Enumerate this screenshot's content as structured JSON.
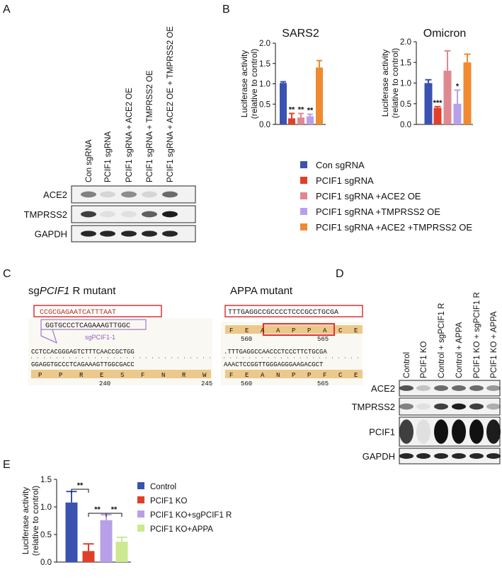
{
  "panels": [
    "A",
    "B",
    "C",
    "D",
    "E"
  ],
  "blot_a": {
    "lanes": [
      "Con sgRNA",
      "PCIF1 sgRNA",
      "PCIF1 sgRNA + ACE2 OE",
      "PCIF1 sgRNA + TMPRSS2 OE",
      "PCIF1 sgRNA + ACE2 OE + TMPRSS2 OE"
    ],
    "rows": [
      "ACE2",
      "TMPRSS2",
      "GAPDH"
    ]
  },
  "blot_d": {
    "lanes": [
      "Control",
      "PCIF1 KO",
      "Control + sgPCIF1 R",
      "Control + APPA",
      "PCIF1 KO + sgPCIF1 R",
      "PCIF1 KO + APPA"
    ],
    "rows": [
      "ACE2",
      "TMPRSS2",
      "PCIF1",
      "GAPDH"
    ]
  },
  "panel_c": {
    "left": {
      "title": [
        "sg",
        "PCIF1",
        " R mutant"
      ],
      "top_seq": "CCGCGAGAATCATTTAAT",
      "guide": "GGTGCCCTCAGAAAGTTGGC",
      "guide_name": "sgPCIF1-1",
      "seq": "CCTCCACGGGAGTCTTTCAACCGCTGG",
      "complement": "GGAGGTGCCCTCAGAAAGTTGGCGACC",
      "aa": [
        "P",
        "P",
        "R",
        "E",
        "S",
        "F",
        "N",
        "R",
        "W"
      ],
      "positions": [
        "240",
        "245"
      ]
    },
    "right": {
      "title": "APPA mutant",
      "top_seq": "TTTGAGGCCGCCCCTCCCGCCTGCGA",
      "aa_top": [
        "F",
        "E",
        "A",
        "A",
        "P",
        "P",
        "A",
        "C",
        "E"
      ],
      "positions_top": [
        "560",
        "565"
      ],
      "seq": ".TTTGAGGCCAACCCTCCCTTCTGCGA",
      "complement": "AAACTCCGGTTGGGAGGGAAGACGCT",
      "aa": [
        "F",
        "E",
        "A",
        "N",
        "P",
        "P",
        "F",
        "C",
        "E"
      ],
      "positions": [
        "560",
        "565"
      ]
    }
  },
  "chart_data": [
    {
      "type": "bar",
      "title": "SARS2",
      "ylabel": [
        "Luciferase activity",
        "(relative to control)"
      ],
      "categories": [
        "Con sgRNA",
        "PCIF1 sgRNA",
        "PCIF1 sgRNA +ACE2 OE",
        "PCIF1 sgRNA +TMPRSS2 OE",
        "PCIF1 sgRNA +ACE2 +TMPRSS2 OE"
      ],
      "colors": [
        "#3a52b0",
        "#e0402a",
        "#e08890",
        "#b8a0e8",
        "#ef8a30"
      ],
      "values": [
        1.02,
        0.15,
        0.17,
        0.2,
        1.4
      ],
      "errors": [
        0.03,
        0.12,
        0.1,
        0.05,
        0.17
      ],
      "annotations": [
        null,
        "**",
        "**",
        "**",
        null
      ],
      "ylim": [
        0,
        2
      ],
      "yticks": [
        {
          "value": 0,
          "label": "0.0"
        },
        0.5,
        {
          "value": 1,
          "label": "1.0"
        },
        1.5,
        {
          "value": 2,
          "label": "2.0"
        }
      ]
    },
    {
      "type": "bar",
      "title": "Omicron",
      "ylabel": [
        "Luciferase activity",
        "(relative to control)"
      ],
      "values": [
        1.0,
        0.4,
        1.3,
        0.5,
        1.5
      ],
      "errors": [
        0.08,
        0.03,
        0.48,
        0.33,
        0.2
      ],
      "annotations": [
        null,
        "***",
        null,
        "*",
        null
      ],
      "ylim": [
        0,
        2
      ],
      "yticks": [
        {
          "value": 0,
          "label": "0.0"
        },
        0.5,
        {
          "value": 1,
          "label": "1.0"
        },
        1.5,
        {
          "value": 2,
          "label": "2.0"
        }
      ]
    },
    {
      "type": "bar",
      "ylabel": [
        "Luciferase activity",
        "(relative to control)"
      ],
      "categories": [
        "Control",
        "PCIF1 KO",
        "PCIF1 KO+sgPCIF1 R",
        "PCIF1 KO+APPA"
      ],
      "colors": [
        "#3a52b0",
        "#e0402a",
        "#b8a0e8",
        "#cce890"
      ],
      "values": [
        1.08,
        0.2,
        0.76,
        0.37
      ],
      "errors": [
        0.2,
        0.13,
        0.1,
        0.08
      ],
      "comparisons": [
        "**",
        "**",
        "**"
      ],
      "ylim": [
        0,
        1.5
      ],
      "yticks": [
        {
          "value": 0,
          "label": "0.0"
        },
        0.5,
        {
          "value": 1,
          "label": "1.0"
        },
        1.5
      ]
    }
  ]
}
